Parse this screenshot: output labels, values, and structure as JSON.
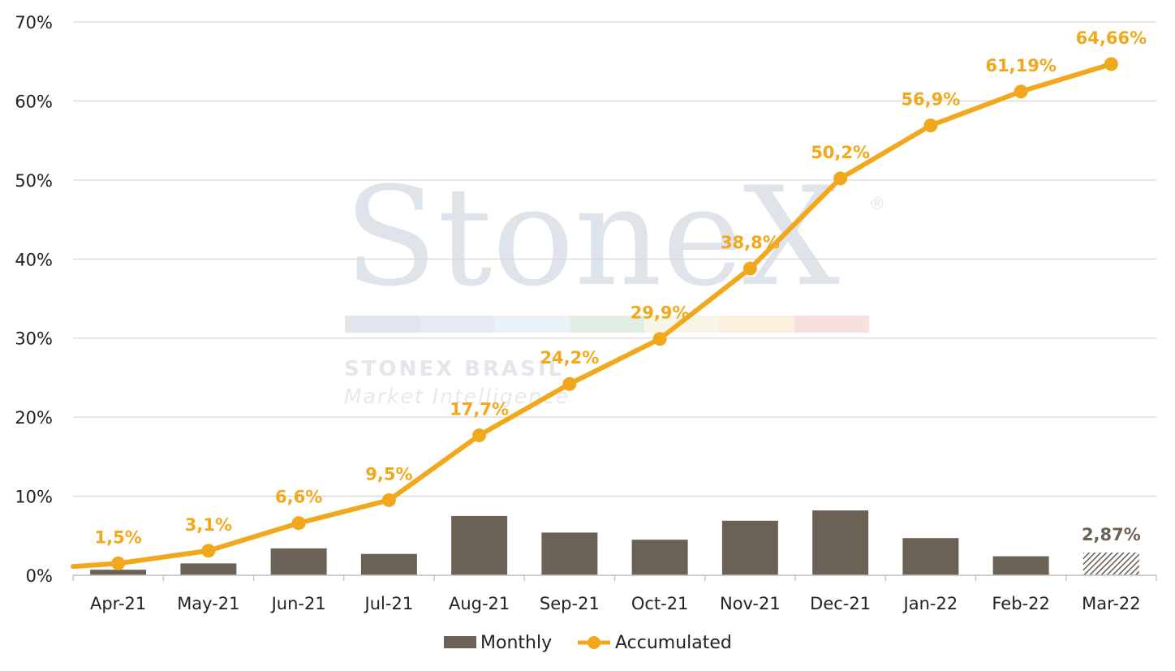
{
  "watermark": {
    "brand": "StoneX",
    "registered": "®",
    "line1": "STONEX BRASIL",
    "line2": "Market Intelligence",
    "stripe_colors": [
      "#e1e5ec",
      "#e6ebf1",
      "#eaf1f7",
      "#e2eee3",
      "#f6f5e6",
      "#fbf0dd",
      "#f6e0e0"
    ]
  },
  "colors": {
    "monthly": "#6b6155",
    "accumulated": "#f2a81d",
    "grid": "#d9d9d9",
    "axis": "#bfbfbf"
  },
  "chart_data": {
    "type": "bar",
    "categories": [
      "Apr-21",
      "May-21",
      "Jun-21",
      "Jul-21",
      "Aug-21",
      "Sep-21",
      "Oct-21",
      "Nov-21",
      "Dec-21",
      "Jan-22",
      "Feb-22",
      "Mar-22"
    ],
    "ylim": [
      0,
      70
    ],
    "yticks": [
      "0%",
      "10%",
      "20%",
      "30%",
      "40%",
      "50%",
      "60%",
      "70%"
    ],
    "grid": true,
    "legend_position": "bottom",
    "series": [
      {
        "name": "Monthly",
        "type": "bar",
        "values": [
          0.7,
          1.5,
          3.4,
          2.7,
          7.5,
          5.4,
          4.5,
          6.9,
          8.2,
          4.7,
          2.4,
          2.87
        ],
        "hatched_last": true,
        "labels": [
          "",
          "",
          "",
          "",
          "",
          "",
          "",
          "",
          "",
          "",
          "",
          "2,87%"
        ]
      },
      {
        "name": "Accumulated",
        "type": "line",
        "start_value": 1.1,
        "values": [
          1.5,
          3.1,
          6.6,
          9.5,
          17.7,
          24.2,
          29.9,
          38.8,
          50.2,
          56.9,
          61.19,
          64.66
        ],
        "labels": [
          "1,5%",
          "3,1%",
          "6,6%",
          "9,5%",
          "17,7%",
          "24,2%",
          "29,9%",
          "38,8%",
          "50,2%",
          "56,9%",
          "61,19%",
          "64,66%"
        ]
      }
    ]
  }
}
